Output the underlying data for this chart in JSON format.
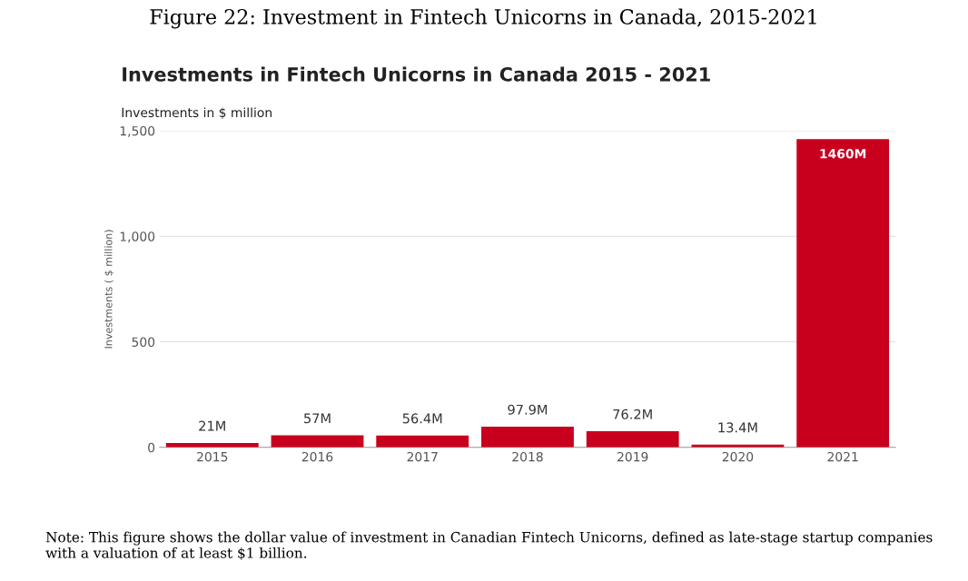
{
  "chart_data": {
    "type": "bar",
    "title": "Figure 22: Investment in Fintech Unicorns in Canada, 2015-2021",
    "subtitle": "Investments in Fintech Unicorns in Canada 2015 - 2021",
    "ylabel": "Investments ( $ million)",
    "categories": [
      "2015",
      "2016",
      "2017",
      "2018",
      "2019",
      "2020",
      "2021"
    ],
    "values": [
      21,
      57,
      56.4,
      97.9,
      76.2,
      13.4,
      1460
    ],
    "value_labels": [
      "21M",
      "57M",
      "56.4M",
      "97.9M",
      "76.2M",
      "13.4M",
      "1460M"
    ],
    "color": "#c8001e",
    "ylim": [
      0,
      1500
    ],
    "yticks": [
      0,
      500,
      {
        "value": 1000,
        "label": "1,000"
      },
      {
        "value": 1500,
        "label": "1,500"
      }
    ],
    "grid": "y",
    "annotations": [
      "Investments in $ million",
      "Note: This figure shows the dollar value of investment in Canadian Fintech Unicorns, defined as late-stage startup companies with a valuation of at least $1 billion."
    ]
  }
}
